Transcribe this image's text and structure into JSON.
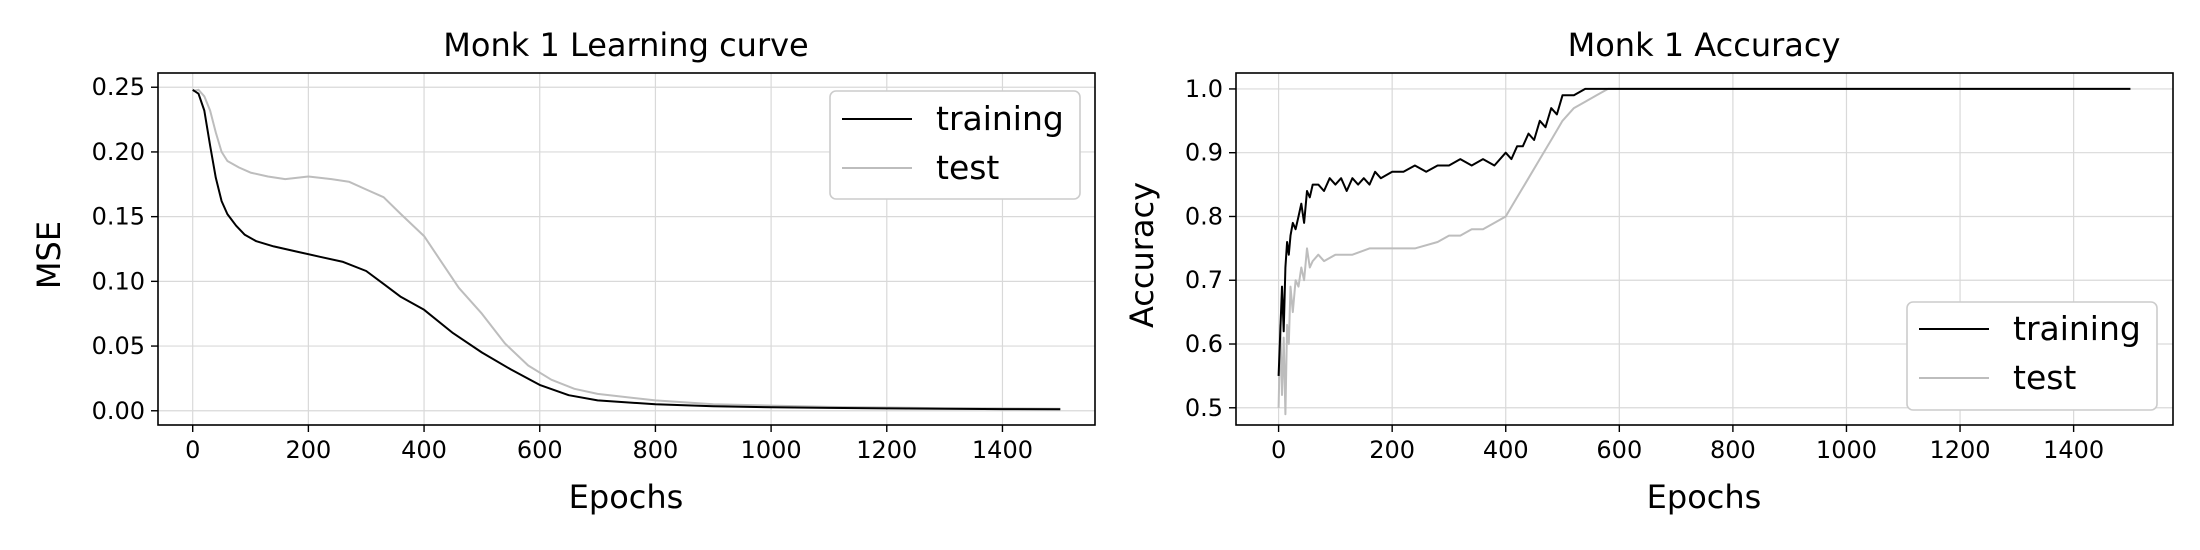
{
  "chart_data": [
    {
      "type": "line",
      "title": "Monk 1 Learning curve",
      "xlabel": "Epochs",
      "ylabel": "MSE",
      "xlim": [
        -60,
        1560
      ],
      "ylim": [
        -0.011,
        0.261
      ],
      "xticks": [
        0,
        200,
        400,
        600,
        800,
        1000,
        1200,
        1400
      ],
      "yticks": [
        0.0,
        0.05,
        0.1,
        0.15,
        0.2,
        0.25
      ],
      "xtick_labels": [
        "0",
        "200",
        "400",
        "600",
        "800",
        "1000",
        "1200",
        "1400"
      ],
      "ytick_labels": [
        "0.00",
        "0.05",
        "0.10",
        "0.15",
        "0.20",
        "0.25"
      ],
      "grid": true,
      "legend_position": "top-right",
      "series": [
        {
          "name": "training",
          "color": "#000000",
          "x": [
            0,
            10,
            20,
            30,
            40,
            50,
            60,
            75,
            90,
            110,
            140,
            180,
            220,
            260,
            300,
            330,
            360,
            400,
            450,
            500,
            550,
            600,
            650,
            700,
            800,
            900,
            1000,
            1100,
            1200,
            1300,
            1400,
            1500
          ],
          "y": [
            0.248,
            0.245,
            0.232,
            0.205,
            0.18,
            0.162,
            0.152,
            0.143,
            0.136,
            0.131,
            0.127,
            0.123,
            0.119,
            0.115,
            0.108,
            0.098,
            0.088,
            0.078,
            0.06,
            0.045,
            0.032,
            0.02,
            0.012,
            0.008,
            0.005,
            0.0035,
            0.0027,
            0.0022,
            0.0018,
            0.0015,
            0.0013,
            0.0012
          ]
        },
        {
          "name": "test",
          "color": "#bdbdbd",
          "x": [
            0,
            10,
            20,
            30,
            40,
            50,
            60,
            80,
            100,
            130,
            160,
            200,
            240,
            270,
            300,
            330,
            360,
            400,
            430,
            460,
            500,
            540,
            580,
            620,
            660,
            700,
            800,
            900,
            1000,
            1100,
            1200,
            1300,
            1400,
            1500
          ],
          "y": [
            0.247,
            0.248,
            0.243,
            0.232,
            0.215,
            0.2,
            0.193,
            0.188,
            0.184,
            0.181,
            0.179,
            0.181,
            0.179,
            0.177,
            0.171,
            0.165,
            0.152,
            0.135,
            0.115,
            0.095,
            0.075,
            0.052,
            0.035,
            0.024,
            0.017,
            0.013,
            0.008,
            0.005,
            0.004,
            0.003,
            0.0025,
            0.002,
            0.0018,
            0.0016
          ]
        }
      ]
    },
    {
      "type": "line",
      "title": "Monk 1 Accuracy",
      "xlabel": "Epochs",
      "ylabel": "Accuracy",
      "xlim": [
        -75,
        1575
      ],
      "ylim": [
        0.473,
        1.025
      ],
      "xticks": [
        0,
        200,
        400,
        600,
        800,
        1000,
        1200,
        1400
      ],
      "yticks": [
        0.5,
        0.6,
        0.7,
        0.8,
        0.9,
        1.0
      ],
      "xtick_labels": [
        "0",
        "200",
        "400",
        "600",
        "800",
        "1000",
        "1200",
        "1400"
      ],
      "ytick_labels": [
        "0.5",
        "0.6",
        "0.7",
        "0.8",
        "0.9",
        "1.0"
      ],
      "grid": true,
      "legend_position": "bottom-right",
      "series": [
        {
          "name": "training",
          "color": "#000000",
          "x": [
            0,
            3,
            6,
            9,
            12,
            15,
            18,
            21,
            25,
            30,
            35,
            40,
            45,
            50,
            55,
            60,
            70,
            80,
            90,
            100,
            110,
            120,
            130,
            140,
            150,
            160,
            170,
            180,
            200,
            220,
            240,
            260,
            280,
            300,
            320,
            340,
            360,
            380,
            400,
            410,
            420,
            430,
            440,
            450,
            460,
            470,
            480,
            490,
            500,
            520,
            540,
            560,
            580,
            600,
            800,
            1000,
            1200,
            1500
          ],
          "y": [
            0.55,
            0.62,
            0.69,
            0.62,
            0.72,
            0.76,
            0.74,
            0.77,
            0.79,
            0.78,
            0.8,
            0.82,
            0.79,
            0.84,
            0.83,
            0.85,
            0.85,
            0.84,
            0.86,
            0.85,
            0.86,
            0.84,
            0.86,
            0.85,
            0.86,
            0.85,
            0.87,
            0.86,
            0.87,
            0.87,
            0.88,
            0.87,
            0.88,
            0.88,
            0.89,
            0.88,
            0.89,
            0.88,
            0.9,
            0.89,
            0.91,
            0.91,
            0.93,
            0.92,
            0.95,
            0.94,
            0.97,
            0.96,
            0.99,
            0.99,
            1.0,
            1.0,
            1.0,
            1.0,
            1.0,
            1.0,
            1.0,
            1.0
          ]
        },
        {
          "name": "test",
          "color": "#bdbdbd",
          "x": [
            0,
            3,
            6,
            9,
            12,
            15,
            18,
            21,
            25,
            30,
            35,
            40,
            45,
            50,
            55,
            60,
            70,
            80,
            100,
            130,
            160,
            200,
            240,
            280,
            300,
            320,
            340,
            360,
            380,
            400,
            420,
            440,
            460,
            480,
            500,
            520,
            540,
            560,
            580,
            600,
            800,
            1000,
            1200,
            1500
          ],
          "y": [
            0.5,
            0.63,
            0.52,
            0.61,
            0.49,
            0.63,
            0.6,
            0.69,
            0.65,
            0.7,
            0.69,
            0.72,
            0.7,
            0.75,
            0.72,
            0.73,
            0.74,
            0.73,
            0.74,
            0.74,
            0.75,
            0.75,
            0.75,
            0.76,
            0.77,
            0.77,
            0.78,
            0.78,
            0.79,
            0.8,
            0.83,
            0.86,
            0.89,
            0.92,
            0.95,
            0.97,
            0.98,
            0.99,
            1.0,
            1.0,
            1.0,
            1.0,
            1.0,
            1.0
          ]
        }
      ]
    }
  ]
}
